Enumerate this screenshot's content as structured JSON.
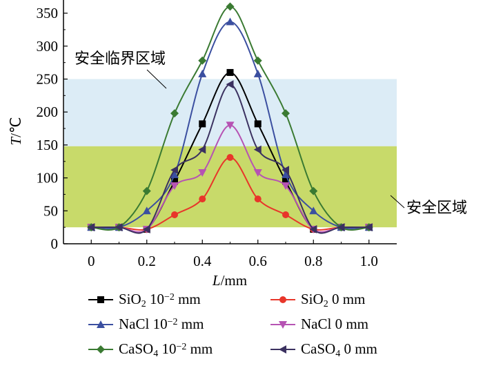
{
  "chart_data": {
    "type": "line",
    "title": "",
    "xlabel": "L/mm",
    "ylabel": "T/℃",
    "xlim": [
      -0.1,
      1.1
    ],
    "ylim": [
      0,
      370
    ],
    "x_ticks": [
      0,
      0.2,
      0.4,
      0.6,
      0.8,
      1.0
    ],
    "x_tick_labels": [
      "0",
      "0.2",
      "0.4",
      "0.6",
      "0.8",
      "1.0"
    ],
    "y_ticks": [
      0,
      50,
      100,
      150,
      200,
      250,
      300,
      350
    ],
    "y_tick_labels": [
      "0",
      "50",
      "100",
      "150",
      "200",
      "250",
      "300",
      "350"
    ],
    "zones": [
      {
        "label": "安全临界区域",
        "y_range": [
          148,
          250
        ],
        "color": "#dcecf6"
      },
      {
        "label": "安全区域",
        "y_range": [
          25,
          148
        ],
        "color": "#c8da6a"
      }
    ],
    "x": [
      0,
      0.1,
      0.2,
      0.3,
      0.4,
      0.5,
      0.6,
      0.7,
      0.8,
      0.9,
      1.0
    ],
    "series": [
      {
        "name": "SiO2 10^-2 mm",
        "legend_main": "SiO",
        "legend_sub": "2",
        "legend_pre": "10",
        "legend_sup": "−2",
        "legend_unit": " mm",
        "color": "#000000",
        "marker": "square",
        "values": [
          25,
          25,
          22,
          95,
          182,
          260,
          182,
          95,
          22,
          25,
          25
        ]
      },
      {
        "name": "SiO2 0 mm",
        "legend_main": "SiO",
        "legend_sub": "2",
        "legend_pre": "",
        "legend_sup": "",
        "legend_unit": "0 mm",
        "color": "#e8362a",
        "marker": "circle",
        "values": [
          25,
          25,
          22,
          44,
          68,
          131,
          68,
          44,
          22,
          25,
          25
        ]
      },
      {
        "name": "NaCl 10^-2 mm",
        "legend_main": "NaCl",
        "legend_sub": "",
        "legend_pre": "10",
        "legend_sup": "−2",
        "legend_unit": " mm",
        "color": "#3b4fa0",
        "marker": "triangle-up",
        "values": [
          25,
          25,
          50,
          105,
          258,
          337,
          258,
          105,
          50,
          25,
          25
        ]
      },
      {
        "name": "NaCl 0 mm",
        "legend_main": "NaCl",
        "legend_sub": "",
        "legend_pre": "",
        "legend_sup": "",
        "legend_unit": "0 mm",
        "color": "#b653b3",
        "marker": "triangle-down",
        "values": [
          25,
          25,
          22,
          88,
          108,
          180,
          108,
          88,
          22,
          25,
          25
        ]
      },
      {
        "name": "CaSO4 10^-2 mm",
        "legend_main": "CaSO",
        "legend_sub": "4",
        "legend_pre": "10",
        "legend_sup": "−2",
        "legend_unit": " mm",
        "color": "#3a7a32",
        "marker": "diamond",
        "values": [
          25,
          25,
          80,
          198,
          278,
          360,
          278,
          198,
          80,
          25,
          25
        ]
      },
      {
        "name": "CaSO4 0 mm",
        "legend_main": "CaSO",
        "legend_sub": "4",
        "legend_pre": "",
        "legend_sup": "",
        "legend_unit": "0 mm",
        "color": "#3b3160",
        "marker": "triangle-left",
        "values": [
          25,
          25,
          22,
          112,
          143,
          242,
          143,
          112,
          22,
          25,
          25
        ]
      }
    ]
  }
}
